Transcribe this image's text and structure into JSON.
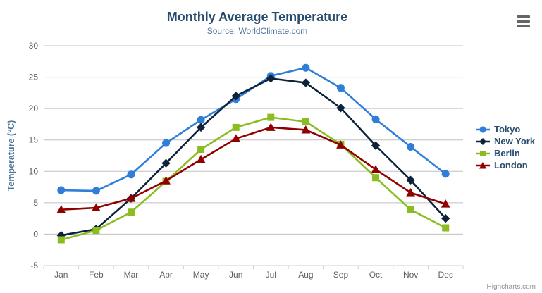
{
  "chart_data": {
    "type": "line",
    "title": "Monthly Average Temperature",
    "subtitle": "Source: WorldClimate.com",
    "xlabel": "",
    "ylabel": "Temperature (°C)",
    "categories": [
      "Jan",
      "Feb",
      "Mar",
      "Apr",
      "May",
      "Jun",
      "Jul",
      "Aug",
      "Sep",
      "Oct",
      "Nov",
      "Dec"
    ],
    "ylim": [
      -5,
      30
    ],
    "y_ticks": [
      -5,
      0,
      5,
      10,
      15,
      20,
      25,
      30
    ],
    "grid": true,
    "legend_position": "right",
    "series": [
      {
        "name": "Tokyo",
        "marker": "circle",
        "color": "#2f7ed8",
        "values": [
          7.0,
          6.9,
          9.5,
          14.5,
          18.2,
          21.5,
          25.2,
          26.5,
          23.3,
          18.3,
          13.9,
          9.6
        ]
      },
      {
        "name": "New York",
        "marker": "diamond",
        "color": "#0d233a",
        "values": [
          -0.2,
          0.8,
          5.7,
          11.3,
          17.0,
          22.0,
          24.8,
          24.1,
          20.1,
          14.1,
          8.6,
          2.5
        ]
      },
      {
        "name": "Berlin",
        "marker": "square",
        "color": "#8bbc21",
        "values": [
          -0.9,
          0.6,
          3.5,
          8.4,
          13.5,
          17.0,
          18.6,
          17.9,
          14.3,
          9.0,
          3.9,
          1.0
        ]
      },
      {
        "name": "London",
        "marker": "triangle",
        "color": "#910000",
        "values": [
          3.9,
          4.2,
          5.7,
          8.5,
          11.9,
          15.2,
          17.0,
          16.6,
          14.2,
          10.3,
          6.6,
          4.8
        ]
      }
    ],
    "style": {
      "title_color": "#274b6d",
      "subtitle_color": "#4d759e",
      "yaxis_title_color": "#4d759e",
      "axis_label_color": "#606060",
      "grid_color": "#c0c0c0",
      "axis_line_color": "#c0d0e0",
      "legend_text_color": "#274b6d",
      "credits_color": "#909090"
    }
  },
  "credits": {
    "label": "Highcharts.com"
  },
  "context_menu": {
    "tooltip": "Chart context menu"
  }
}
